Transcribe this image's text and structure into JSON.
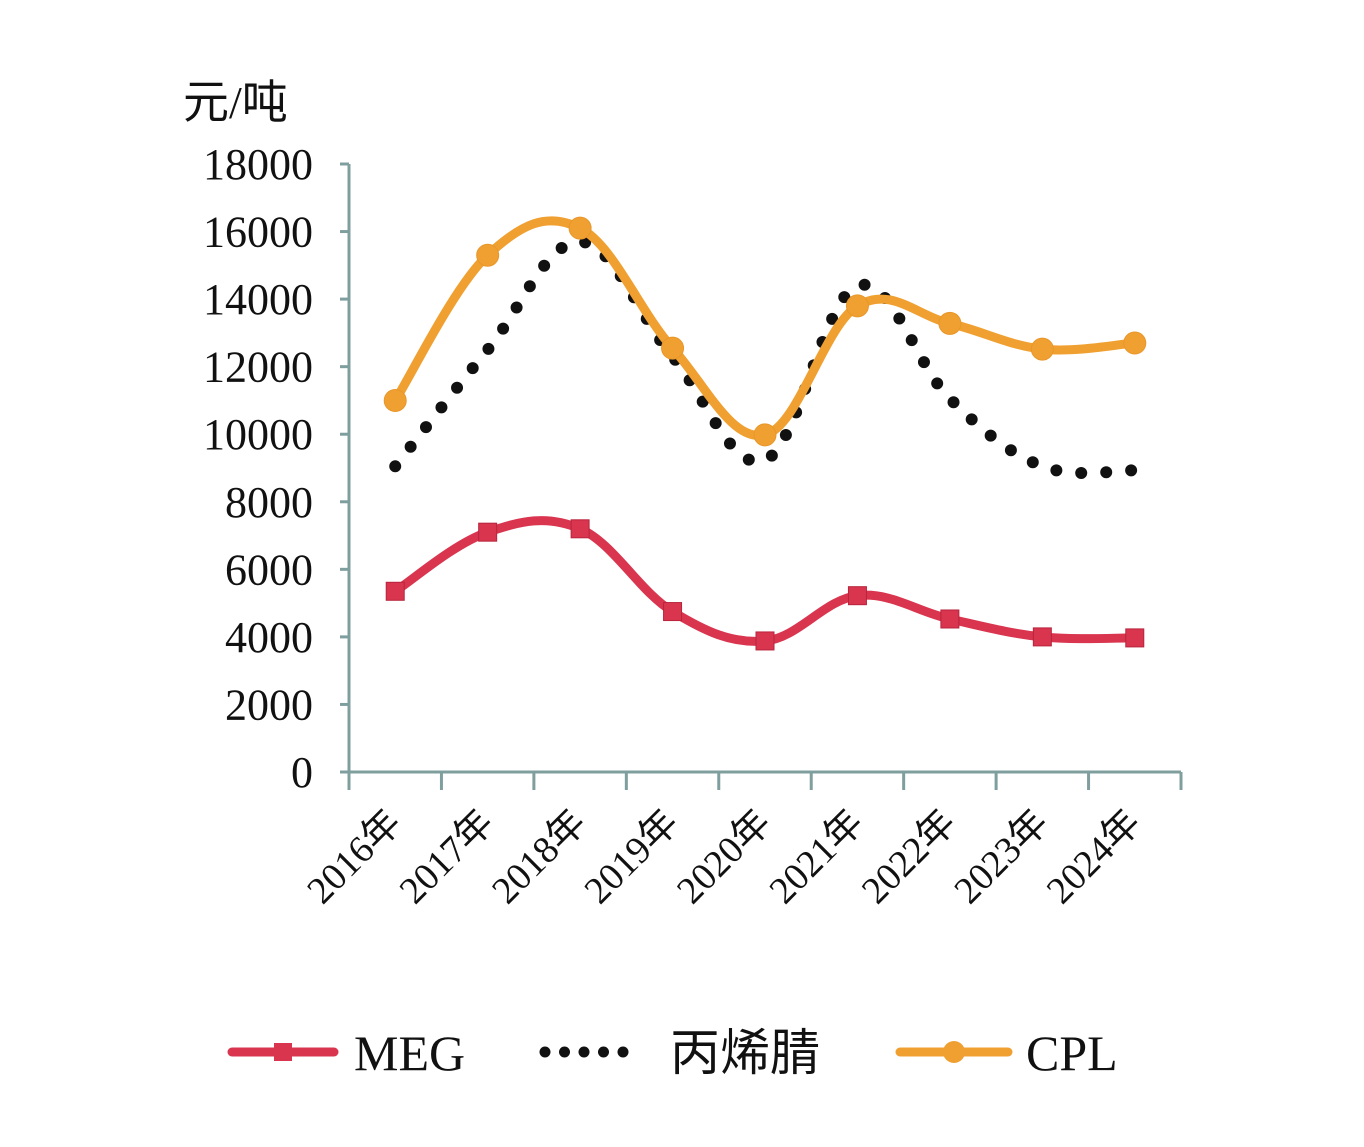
{
  "chart_data": {
    "type": "line",
    "title": "",
    "xlabel": "",
    "ylabel": "元/吨",
    "ylim": [
      0,
      18000
    ],
    "yticks": [
      0,
      2000,
      4000,
      6000,
      8000,
      10000,
      12000,
      14000,
      16000,
      18000
    ],
    "ytick_labels": [
      "0",
      "2000",
      "4000",
      "6000",
      "8000",
      "10000",
      "12000",
      "14000",
      "16000",
      "18000"
    ],
    "categories": [
      "2016年",
      "2017年",
      "2018年",
      "2019年",
      "2020年",
      "2021年",
      "2022年",
      "2023年",
      "2024年"
    ],
    "grid": false,
    "legend_position": "bottom",
    "series": [
      {
        "name": "MEG",
        "style": "solid-square-markers",
        "color": "#d9354f",
        "values": [
          5350,
          7100,
          7200,
          4750,
          3880,
          5220,
          4530,
          4000,
          3970
        ]
      },
      {
        "name": "丙烯腈",
        "style": "dotted",
        "color": "#111111",
        "values": [
          9050,
          12500,
          15700,
          12300,
          9230,
          14400,
          11050,
          9050,
          8930
        ]
      },
      {
        "name": "CPL",
        "style": "solid-circle-markers",
        "color": "#f0a030",
        "values": [
          11000,
          15300,
          16100,
          12550,
          9980,
          13800,
          13280,
          12520,
          12700
        ]
      }
    ]
  }
}
